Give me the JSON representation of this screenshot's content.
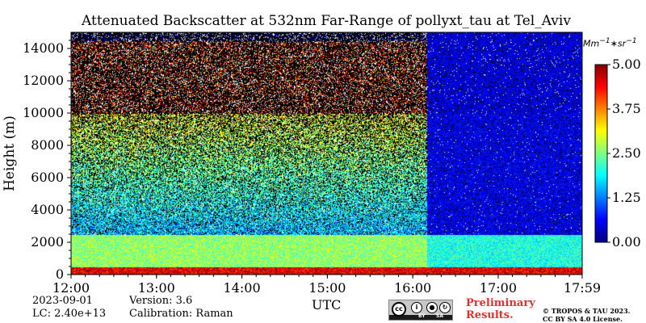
{
  "chart_data": {
    "type": "heatmap",
    "title": "Attenuated Backscatter at 532nm Far-Range of pollyxt_tau at Tel_Aviv",
    "xlabel": "UTC",
    "ylabel": "Height (m)",
    "x_ticks": [
      "12:00",
      "13:00",
      "14:00",
      "15:00",
      "16:00",
      "17:00",
      "17:59"
    ],
    "x_range_hours": [
      12.0,
      17.9833
    ],
    "y_ticks": [
      0,
      2000,
      4000,
      6000,
      8000,
      10000,
      12000,
      14000
    ],
    "y_range": [
      0,
      15000
    ],
    "colorbar": {
      "label": "Mm^{-1}*sr^{-1}",
      "min": 0.0,
      "max": 5.0,
      "ticks": [
        "0.00",
        "1.25",
        "2.50",
        "3.75",
        "5.00"
      ],
      "colormap": "jet"
    },
    "layers": [
      {
        "height_range": [
          0,
          500
        ],
        "value": 4.5,
        "note": "near-surface strong layer"
      },
      {
        "height_range": [
          500,
          2500
        ],
        "value": 2.6,
        "note": "boundary layer"
      },
      {
        "height_range": [
          2500,
          10000
        ],
        "value": 2.3,
        "note": "noisy signal region"
      },
      {
        "height_range": [
          10000,
          14500
        ],
        "value": 4.2,
        "note": "saturated noise top"
      }
    ],
    "transition_time": "16:10"
  },
  "info": {
    "date": "2023-09-01",
    "lc": "LC: 2.40e+13",
    "version": "Version: 3.6",
    "calibration": "Calibration: Raman"
  },
  "license": {
    "cc_label": "cc",
    "by_label": "BY",
    "sa_label": "SA",
    "preliminary_line1": "Preliminary",
    "preliminary_line2": "Results.",
    "copyright_line1": "© TROPOS & TAU 2023.",
    "copyright_line2": "CC BY SA 4.0 License."
  }
}
